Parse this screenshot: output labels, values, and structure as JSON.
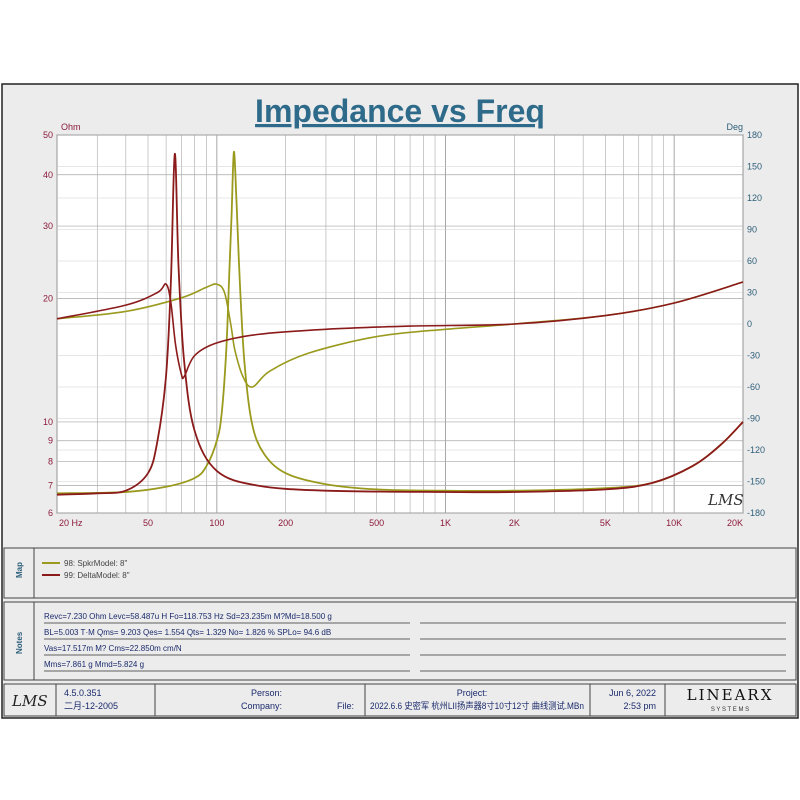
{
  "colors": {
    "frame_bg": "#ececec",
    "plot_bg": "#ffffff",
    "grid": "#a8a8a8",
    "title": "#2e6b8a",
    "left_axis": "#8b1a3a",
    "right_axis": "#2e5f7a",
    "series1": "#9a9a1e",
    "series2": "#8b1a1a",
    "text": "#1a2a6c"
  },
  "chart_data": {
    "type": "line",
    "title": "Impedance vs Freq",
    "xscale": "log",
    "xlim": [
      20,
      20000
    ],
    "ylim_left": [
      6,
      50
    ],
    "yscale_left": "log",
    "ylim_right": [
      -180,
      180
    ],
    "left_unit": "Ohm",
    "right_unit": "Deg",
    "grid": true,
    "x_ticks": [
      {
        "v": 20,
        "l": "20  Hz"
      },
      {
        "v": 50,
        "l": "50"
      },
      {
        "v": 100,
        "l": "100"
      },
      {
        "v": 200,
        "l": "200"
      },
      {
        "v": 500,
        "l": "500"
      },
      {
        "v": 1000,
        "l": "1K"
      },
      {
        "v": 2000,
        "l": "2K"
      },
      {
        "v": 5000,
        "l": "5K"
      },
      {
        "v": 10000,
        "l": "10K"
      },
      {
        "v": 20000,
        "l": "20K"
      }
    ],
    "y_left_ticks": [
      {
        "v": 6,
        "l": "6"
      },
      {
        "v": 7,
        "l": "7"
      },
      {
        "v": 8,
        "l": "8"
      },
      {
        "v": 9,
        "l": "9"
      },
      {
        "v": 10,
        "l": "10"
      },
      {
        "v": 20,
        "l": "20"
      },
      {
        "v": 30,
        "l": "30"
      },
      {
        "v": 40,
        "l": "40"
      },
      {
        "v": 50,
        "l": "50"
      }
    ],
    "y_right_ticks": [
      {
        "v": 180,
        "l": "180"
      },
      {
        "v": 150,
        "l": "150"
      },
      {
        "v": 120,
        "l": "120"
      },
      {
        "v": 90,
        "l": "90"
      },
      {
        "v": 60,
        "l": "60"
      },
      {
        "v": 30,
        "l": "30"
      },
      {
        "v": 0,
        "l": "0"
      },
      {
        "v": -30,
        "l": "-30"
      },
      {
        "v": -60,
        "l": "-60"
      },
      {
        "v": -90,
        "l": "-90"
      },
      {
        "v": -120,
        "l": "-120"
      },
      {
        "v": -150,
        "l": "-150"
      },
      {
        "v": -180,
        "l": "-180"
      }
    ],
    "series": [
      {
        "name": "98: SpkrModel: 8\"",
        "impedance": [
          [
            20,
            6.7
          ],
          [
            40,
            6.75
          ],
          [
            60,
            6.95
          ],
          [
            80,
            7.3
          ],
          [
            90,
            7.8
          ],
          [
            100,
            9
          ],
          [
            105,
            10.5
          ],
          [
            110,
            15
          ],
          [
            113,
            22
          ],
          [
            116,
            32
          ],
          [
            118.75,
            45.5
          ],
          [
            122,
            34
          ],
          [
            126,
            22
          ],
          [
            132,
            14
          ],
          [
            142,
            10
          ],
          [
            160,
            8.4
          ],
          [
            200,
            7.5
          ],
          [
            300,
            7.05
          ],
          [
            500,
            6.85
          ],
          [
            1000,
            6.8
          ],
          [
            2000,
            6.8
          ],
          [
            5000,
            6.9
          ],
          [
            8000,
            7.1
          ],
          [
            12000,
            7.8
          ],
          [
            16000,
            8.8
          ],
          [
            20000,
            10
          ]
        ],
        "phase": [
          [
            20,
            5
          ],
          [
            40,
            12
          ],
          [
            70,
            25
          ],
          [
            90,
            35
          ],
          [
            100,
            38
          ],
          [
            108,
            30
          ],
          [
            115,
            0
          ],
          [
            120,
            -25
          ],
          [
            130,
            -50
          ],
          [
            143,
            -60
          ],
          [
            170,
            -45
          ],
          [
            250,
            -28
          ],
          [
            500,
            -12
          ],
          [
            1000,
            -5
          ],
          [
            2000,
            0
          ],
          [
            5000,
            8
          ],
          [
            10000,
            20
          ],
          [
            20000,
            40
          ]
        ]
      },
      {
        "name": "99: DeltaModel: 8\"",
        "impedance": [
          [
            20,
            6.65
          ],
          [
            30,
            6.7
          ],
          [
            40,
            6.8
          ],
          [
            50,
            7.5
          ],
          [
            55,
            9
          ],
          [
            60,
            13
          ],
          [
            63,
            22
          ],
          [
            65.5,
            45
          ],
          [
            68,
            24
          ],
          [
            72,
            14
          ],
          [
            80,
            9.5
          ],
          [
            100,
            7.6
          ],
          [
            150,
            7.0
          ],
          [
            300,
            6.8
          ],
          [
            1000,
            6.75
          ],
          [
            2000,
            6.75
          ],
          [
            5000,
            6.85
          ],
          [
            8000,
            7.1
          ],
          [
            12000,
            7.8
          ],
          [
            16000,
            8.8
          ],
          [
            20000,
            10
          ]
        ],
        "phase": [
          [
            20,
            5
          ],
          [
            40,
            18
          ],
          [
            55,
            30
          ],
          [
            60,
            38
          ],
          [
            63,
            20
          ],
          [
            66,
            -20
          ],
          [
            70,
            -48
          ],
          [
            72,
            -50
          ],
          [
            80,
            -30
          ],
          [
            100,
            -18
          ],
          [
            150,
            -10
          ],
          [
            300,
            -5
          ],
          [
            700,
            -2
          ],
          [
            2000,
            0
          ],
          [
            5000,
            8
          ],
          [
            10000,
            20
          ],
          [
            20000,
            40
          ]
        ]
      }
    ]
  },
  "legend": {
    "label": "Map",
    "entries": [
      "98: SpkrModel: 8\"",
      "99: DeltaModel: 8\""
    ]
  },
  "notes": {
    "label": "Notes",
    "lines": [
      "Revc=7.230 Ohm  Levc=58.487u H  Fo=118.753 Hz  Sd=23.235m M?Md=18.500 g",
      "BL=5.003 T·M  Qms= 9.203  Qes= 1.554  Qts= 1.329  No= 1.826 %  SPLo= 94.6 dB",
      "Vas=17.517m M?  Cms=22.850m cm/N",
      "Mms=7.861 g  Mmd=5.824 g"
    ]
  },
  "footer": {
    "lms_logo": "LMS",
    "version": "4.5.0.351",
    "date_built": "二月-12-2005",
    "person_label": "Person:",
    "company_label": "Company:",
    "project_label": "Project:",
    "file_label": "File:",
    "file_value": "2022.6.6 史密军 杭州LII扬声器8寸10寸12寸 曲线测试.MBn",
    "date": "Jun  6, 2022",
    "time": "2:53 pm",
    "brand": "LINEARX",
    "brand_sub": "S Y S T E M S"
  },
  "plot_logo": "LMS"
}
